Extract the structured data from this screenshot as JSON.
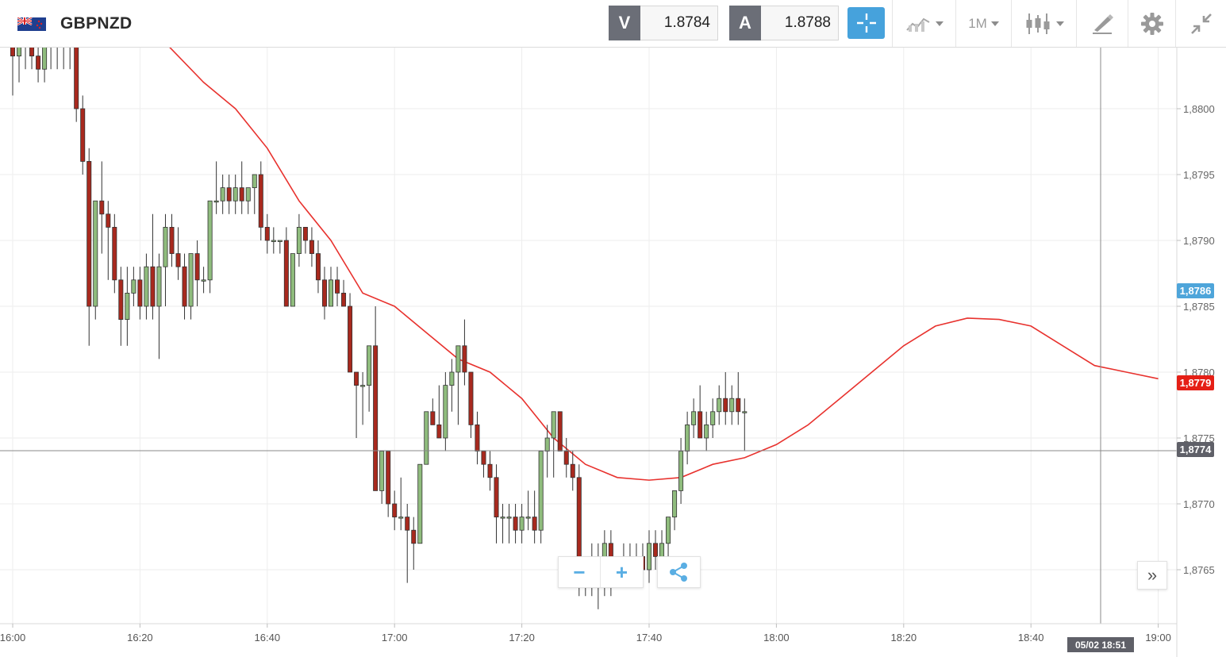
{
  "instrument": {
    "symbol": "GBPNZD",
    "flag_icon": "gb-nz-flag-icon"
  },
  "quotes": {
    "sell": {
      "label": "V",
      "value": "1.8784"
    },
    "buy": {
      "label": "A",
      "value": "1.8788"
    }
  },
  "toolbar": {
    "crosshair_icon": "crosshair-icon",
    "chart_type_icon": "line-chart-icon",
    "timeframe_label": "1M",
    "candles_icon": "candlestick-icon",
    "draw_icon": "drawing-pen-icon",
    "settings_icon": "gear-icon",
    "collapse_icon": "collapse-arrows-icon",
    "accent_color": "#46a2dc"
  },
  "chart_data": {
    "type": "candlestick",
    "title": "",
    "x_ticks": [
      "16:00",
      "16:20",
      "16:40",
      "17:00",
      "17:20",
      "17:40",
      "18:00",
      "18:20",
      "18:40",
      "19:00"
    ],
    "y_ticks": [
      "1,8800",
      "1,8795",
      "1,8790",
      "1,8785",
      "1,8780",
      "1,8775",
      "1,8770",
      "1,8765"
    ],
    "ylim": [
      1.87605,
      1.88045
    ],
    "bar_interval": "1M",
    "up_color": "#8fbc7d",
    "down_color": "#a8291e",
    "ma_color": "#e8322e",
    "moving_average": [
      [
        "16:24",
        1.8805
      ],
      [
        "16:30",
        1.8802
      ],
      [
        "16:35",
        1.88
      ],
      [
        "16:40",
        1.8797
      ],
      [
        "16:45",
        1.8793
      ],
      [
        "16:50",
        1.879
      ],
      [
        "16:55",
        1.8786
      ],
      [
        "17:00",
        1.8785
      ],
      [
        "17:05",
        1.8783
      ],
      [
        "17:10",
        1.8781
      ],
      [
        "17:15",
        1.878
      ],
      [
        "17:20",
        1.8778
      ],
      [
        "17:25",
        1.8775
      ],
      [
        "17:30",
        1.8773
      ],
      [
        "17:35",
        1.8772
      ],
      [
        "17:40",
        1.87718
      ],
      [
        "17:45",
        1.8772
      ],
      [
        "17:50",
        1.8773
      ],
      [
        "17:55",
        1.87735
      ],
      [
        "18:00",
        1.87745
      ],
      [
        "18:05",
        1.8776
      ],
      [
        "18:10",
        1.8778
      ],
      [
        "18:15",
        1.878
      ],
      [
        "18:20",
        1.8782
      ],
      [
        "18:25",
        1.87835
      ],
      [
        "18:30",
        1.87841
      ],
      [
        "18:35",
        1.8784
      ],
      [
        "18:40",
        1.87835
      ],
      [
        "18:45",
        1.8782
      ],
      [
        "18:50",
        1.87805
      ],
      [
        "18:55",
        1.878
      ],
      [
        "19:00",
        1.87795
      ]
    ],
    "candles": [
      [
        "16:00",
        1.8806,
        1.8807,
        1.8801,
        1.8804
      ],
      [
        "16:01",
        1.8804,
        1.8806,
        1.8802,
        1.8805
      ],
      [
        "16:02",
        1.8805,
        1.8807,
        1.8803,
        1.8806
      ],
      [
        "16:03",
        1.8806,
        1.8807,
        1.8803,
        1.8804
      ],
      [
        "16:04",
        1.8804,
        1.8806,
        1.8802,
        1.8803
      ],
      [
        "16:05",
        1.8803,
        1.8806,
        1.8802,
        1.8805
      ],
      [
        "16:06",
        1.8805,
        1.8807,
        1.8803,
        1.8806
      ],
      [
        "16:07",
        1.8806,
        1.8807,
        1.8803,
        1.8806
      ],
      [
        "16:08",
        1.8806,
        1.8807,
        1.8803,
        1.8806
      ],
      [
        "16:09",
        1.8806,
        1.8807,
        1.8803,
        1.8806
      ],
      [
        "16:10",
        1.8806,
        1.8807,
        1.8799,
        1.88
      ],
      [
        "16:11",
        1.88,
        1.8801,
        1.8795,
        1.8796
      ],
      [
        "16:12",
        1.8796,
        1.8797,
        1.8782,
        1.8785
      ],
      [
        "16:13",
        1.8785,
        1.8793,
        1.8784,
        1.8793
      ],
      [
        "16:14",
        1.8793,
        1.8796,
        1.8789,
        1.8792
      ],
      [
        "16:15",
        1.8792,
        1.8793,
        1.8787,
        1.8791
      ],
      [
        "16:16",
        1.8791,
        1.8792,
        1.8786,
        1.8787
      ],
      [
        "16:17",
        1.8787,
        1.8788,
        1.8782,
        1.8784
      ],
      [
        "16:18",
        1.8784,
        1.8788,
        1.8782,
        1.8786
      ],
      [
        "16:19",
        1.8786,
        1.8788,
        1.8785,
        1.8787
      ],
      [
        "16:20",
        1.8787,
        1.8788,
        1.8784,
        1.8785
      ],
      [
        "16:21",
        1.8785,
        1.8789,
        1.8784,
        1.8788
      ],
      [
        "16:22",
        1.8788,
        1.8792,
        1.8784,
        1.8785
      ],
      [
        "16:23",
        1.8785,
        1.8789,
        1.8781,
        1.8788
      ],
      [
        "16:24",
        1.8788,
        1.8792,
        1.8785,
        1.8791
      ],
      [
        "16:25",
        1.8791,
        1.8792,
        1.8788,
        1.8789
      ],
      [
        "16:26",
        1.8789,
        1.8791,
        1.8787,
        1.8788
      ],
      [
        "16:27",
        1.8788,
        1.8789,
        1.8784,
        1.8785
      ],
      [
        "16:28",
        1.8785,
        1.8789,
        1.8784,
        1.8789
      ],
      [
        "16:29",
        1.8789,
        1.879,
        1.8785,
        1.8787
      ],
      [
        "16:30",
        1.8787,
        1.8788,
        1.8786,
        1.8787
      ],
      [
        "16:31",
        1.8787,
        1.8793,
        1.8786,
        1.8793
      ],
      [
        "16:32",
        1.8793,
        1.8796,
        1.8792,
        1.8793
      ],
      [
        "16:33",
        1.8793,
        1.8795,
        1.8792,
        1.8794
      ],
      [
        "16:34",
        1.8794,
        1.8795,
        1.8792,
        1.8793
      ],
      [
        "16:35",
        1.8793,
        1.8795,
        1.8792,
        1.8794
      ],
      [
        "16:36",
        1.8794,
        1.8796,
        1.8792,
        1.8793
      ],
      [
        "16:37",
        1.8793,
        1.8794,
        1.8792,
        1.8794
      ],
      [
        "16:38",
        1.8794,
        1.8795,
        1.8792,
        1.8795
      ],
      [
        "16:39",
        1.8795,
        1.8796,
        1.879,
        1.8791
      ],
      [
        "16:40",
        1.8791,
        1.8792,
        1.8789,
        1.879
      ],
      [
        "16:41",
        1.879,
        1.8791,
        1.8789,
        1.879
      ],
      [
        "16:42",
        1.879,
        1.879,
        1.8789,
        1.879
      ],
      [
        "16:43",
        1.879,
        1.8791,
        1.8785,
        1.8785
      ],
      [
        "16:44",
        1.8785,
        1.8789,
        1.8785,
        1.8789
      ],
      [
        "16:45",
        1.8789,
        1.8792,
        1.8788,
        1.8791
      ],
      [
        "16:46",
        1.8791,
        1.8791,
        1.8789,
        1.879
      ],
      [
        "16:47",
        1.879,
        1.8791,
        1.8788,
        1.8789
      ],
      [
        "16:48",
        1.8789,
        1.879,
        1.8786,
        1.8787
      ],
      [
        "16:49",
        1.8787,
        1.8788,
        1.8784,
        1.8785
      ],
      [
        "16:50",
        1.8785,
        1.8788,
        1.8785,
        1.8787
      ],
      [
        "16:51",
        1.8787,
        1.8788,
        1.8785,
        1.8786
      ],
      [
        "16:52",
        1.8786,
        1.8787,
        1.8785,
        1.8785
      ],
      [
        "16:53",
        1.8785,
        1.8786,
        1.878,
        1.878
      ],
      [
        "16:54",
        1.878,
        1.878,
        1.8775,
        1.8779
      ],
      [
        "16:55",
        1.8779,
        1.878,
        1.8776,
        1.8779
      ],
      [
        "16:56",
        1.8779,
        1.8782,
        1.8777,
        1.8782
      ],
      [
        "16:57",
        1.8782,
        1.8785,
        1.8771,
        1.8771
      ],
      [
        "16:58",
        1.8771,
        1.8774,
        1.877,
        1.8774
      ],
      [
        "16:59",
        1.8774,
        1.8774,
        1.8769,
        1.877
      ],
      [
        "17:00",
        1.877,
        1.8771,
        1.8768,
        1.8769
      ],
      [
        "17:01",
        1.8769,
        1.8772,
        1.8768,
        1.8769
      ],
      [
        "17:02",
        1.8769,
        1.877,
        1.8764,
        1.8768
      ],
      [
        "17:03",
        1.8768,
        1.8769,
        1.8765,
        1.8767
      ],
      [
        "17:04",
        1.8767,
        1.8773,
        1.8767,
        1.8773
      ],
      [
        "17:05",
        1.8773,
        1.8777,
        1.8773,
        1.8777
      ],
      [
        "17:06",
        1.8777,
        1.8778,
        1.8776,
        1.8776
      ],
      [
        "17:07",
        1.8776,
        1.8779,
        1.8775,
        1.8775
      ],
      [
        "17:08",
        1.8775,
        1.878,
        1.8774,
        1.8779
      ],
      [
        "17:09",
        1.8779,
        1.8781,
        1.8777,
        1.878
      ],
      [
        "17:10",
        1.878,
        1.8782,
        1.8776,
        1.8782
      ],
      [
        "17:11",
        1.8782,
        1.8784,
        1.8779,
        1.878
      ],
      [
        "17:12",
        1.878,
        1.878,
        1.8775,
        1.8776
      ],
      [
        "17:13",
        1.8776,
        1.8777,
        1.8773,
        1.8774
      ],
      [
        "17:14",
        1.8774,
        1.8774,
        1.8772,
        1.8773
      ],
      [
        "17:15",
        1.8773,
        1.8774,
        1.8771,
        1.8772
      ],
      [
        "17:16",
        1.8772,
        1.8773,
        1.8767,
        1.8769
      ],
      [
        "17:17",
        1.8769,
        1.877,
        1.8767,
        1.8769
      ],
      [
        "17:18",
        1.8769,
        1.877,
        1.8767,
        1.8769
      ],
      [
        "17:19",
        1.8769,
        1.877,
        1.8767,
        1.8768
      ],
      [
        "17:20",
        1.8768,
        1.877,
        1.8767,
        1.8769
      ],
      [
        "17:21",
        1.8769,
        1.8771,
        1.8768,
        1.8769
      ],
      [
        "17:22",
        1.8769,
        1.8771,
        1.8767,
        1.8768
      ],
      [
        "17:23",
        1.8768,
        1.8774,
        1.8767,
        1.8774
      ],
      [
        "17:24",
        1.8774,
        1.8776,
        1.8772,
        1.8775
      ],
      [
        "17:25",
        1.8775,
        1.8777,
        1.8772,
        1.8777
      ],
      [
        "17:26",
        1.8777,
        1.8777,
        1.8774,
        1.8774
      ],
      [
        "17:27",
        1.8774,
        1.8775,
        1.8772,
        1.8773
      ],
      [
        "17:28",
        1.8773,
        1.8774,
        1.8771,
        1.8772
      ],
      [
        "17:29",
        1.8772,
        1.8773,
        1.8763,
        1.8764
      ],
      [
        "17:30",
        1.8764,
        1.8766,
        1.8763,
        1.8766
      ],
      [
        "17:31",
        1.8766,
        1.8767,
        1.8763,
        1.8764
      ],
      [
        "17:32",
        1.8764,
        1.8767,
        1.8762,
        1.8765
      ],
      [
        "17:33",
        1.8765,
        1.8768,
        1.8763,
        1.8767
      ],
      [
        "17:34",
        1.8767,
        1.8768,
        1.8763,
        1.8764
      ],
      [
        "17:35",
        1.8764,
        1.8766,
        1.8764,
        1.8766
      ],
      [
        "17:36",
        1.8766,
        1.8767,
        1.8764,
        1.8766
      ],
      [
        "17:37",
        1.8766,
        1.8767,
        1.8764,
        1.8765
      ],
      [
        "17:38",
        1.8765,
        1.8767,
        1.8764,
        1.8766
      ],
      [
        "17:39",
        1.8766,
        1.8767,
        1.8764,
        1.8765
      ],
      [
        "17:40",
        1.8765,
        1.8768,
        1.8764,
        1.8767
      ],
      [
        "17:41",
        1.8767,
        1.8768,
        1.8765,
        1.8766
      ],
      [
        "17:42",
        1.8766,
        1.8768,
        1.8765,
        1.8767
      ],
      [
        "17:43",
        1.8767,
        1.8769,
        1.8765,
        1.8769
      ],
      [
        "17:44",
        1.8769,
        1.8771,
        1.8768,
        1.8771
      ],
      [
        "17:45",
        1.8771,
        1.8775,
        1.877,
        1.8774
      ],
      [
        "17:46",
        1.8774,
        1.8777,
        1.8773,
        1.8776
      ],
      [
        "17:47",
        1.8776,
        1.8778,
        1.8775,
        1.8777
      ],
      [
        "17:48",
        1.8777,
        1.8779,
        1.8775,
        1.8775
      ],
      [
        "17:49",
        1.8775,
        1.8777,
        1.8774,
        1.8776
      ],
      [
        "17:50",
        1.8776,
        1.8778,
        1.8775,
        1.8777
      ],
      [
        "17:51",
        1.8777,
        1.8779,
        1.8776,
        1.8778
      ],
      [
        "17:52",
        1.8778,
        1.878,
        1.8776,
        1.8777
      ],
      [
        "17:53",
        1.8777,
        1.8779,
        1.8776,
        1.8778
      ],
      [
        "17:54",
        1.8778,
        1.878,
        1.8776,
        1.8777
      ],
      [
        "17:55",
        1.8777,
        1.8778,
        1.8774,
        1.8777
      ]
    ],
    "crosshair": {
      "price_label": "1,8774",
      "time_label": "05/02 18:51"
    },
    "price_tags": [
      {
        "label": "1,8786",
        "color": "#4ea5da",
        "price": 1.87862
      },
      {
        "label": "1,8779",
        "color": "#e51f16",
        "price": 1.87792
      },
      {
        "label": "1,8774",
        "color": "#5f6068",
        "price": 1.87741
      }
    ]
  },
  "controls": {
    "zoom_out_label": "−",
    "zoom_in_label": "+",
    "share_icon": "share-icon",
    "scroll_end_label": "»"
  }
}
